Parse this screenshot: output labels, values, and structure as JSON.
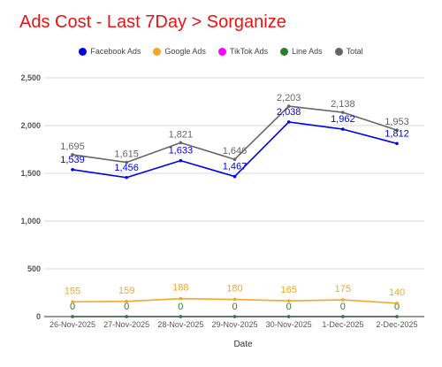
{
  "chart_data": {
    "type": "line",
    "title": "Ads Cost - Last 7Day > Sorganize",
    "xlabel": "Date",
    "ylabel": "",
    "ylim": [
      0,
      2500
    ],
    "yticks": [
      "0",
      "500",
      "1,000",
      "1,500",
      "2,000",
      "2,500"
    ],
    "grid": true,
    "legend_position": "top",
    "categories": [
      "26-Nov-2025",
      "27-Nov-2025",
      "28-Nov-2025",
      "29-Nov-2025",
      "30-Nov-2025",
      "1-Dec-2025",
      "2-Dec-2025"
    ],
    "series": [
      {
        "name": "Facebook Ads",
        "color": "#0000ee",
        "values": [
          1539,
          1456,
          1633,
          1467,
          2038,
          1962,
          1812
        ],
        "labels": [
          "1,539",
          "1,456",
          "1,633",
          "1,467",
          "2,038",
          "1,962",
          "1,812"
        ]
      },
      {
        "name": "Google Ads",
        "color": "#f5a623",
        "values": [
          155,
          159,
          188,
          180,
          165,
          175,
          140
        ],
        "labels": [
          "155",
          "159",
          "188",
          "180",
          "165",
          "175",
          "140"
        ]
      },
      {
        "name": "TikTok Ads",
        "color": "#ff00ff",
        "values": [
          0,
          0,
          0,
          0,
          0,
          0,
          0
        ],
        "labels": []
      },
      {
        "name": "Line Ads",
        "color": "#2e7d32",
        "values": [
          0,
          0,
          0,
          0,
          0,
          0,
          0
        ],
        "labels": [
          "0",
          "0",
          "0",
          "0",
          "0",
          "0",
          "0"
        ]
      },
      {
        "name": "Total",
        "color": "#666666",
        "values": [
          1695,
          1615,
          1821,
          1646,
          2203,
          2138,
          1953
        ],
        "labels": [
          "1,695",
          "1,615",
          "1,821",
          "1,646",
          "2,203",
          "2,138",
          "1,953"
        ]
      }
    ]
  }
}
